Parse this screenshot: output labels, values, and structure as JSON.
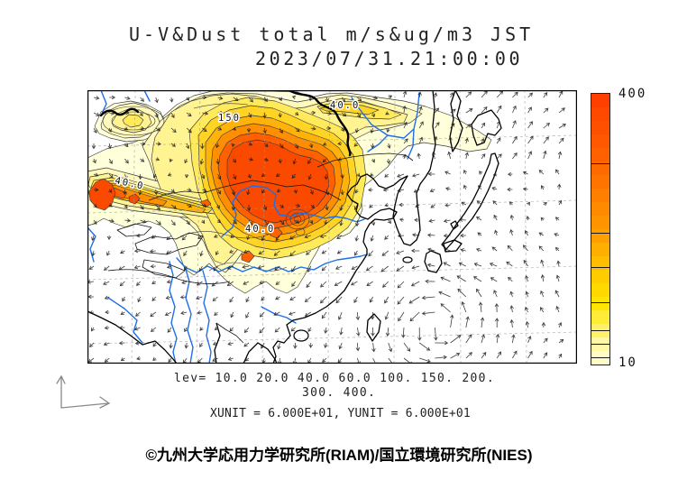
{
  "title": {
    "line1": "U-V&Dust total m/s&ug/m3 JST",
    "line2": "2023/07/31.21:00:00"
  },
  "legend": {
    "lev_line1": "lev= 10.0 20.0 40.0 60.0 100. 150. 200.",
    "lev_line2": "300. 400.",
    "units_line": "XUNIT = 6.000E+01, YUNIT = 6.000E+01"
  },
  "colorbar": {
    "max_label": "400",
    "min_label": "10",
    "min": 10,
    "max": 400,
    "levels": [
      10,
      20,
      40,
      60,
      100,
      150,
      200,
      300,
      400
    ],
    "gradient": [
      {
        "v": 10,
        "c": "#FFFFDC"
      },
      {
        "v": 20,
        "c": "#FFFCC4"
      },
      {
        "v": 40,
        "c": "#FFF9A6"
      },
      {
        "v": 60,
        "c": "#FFF266"
      },
      {
        "v": 100,
        "c": "#FFE400"
      },
      {
        "v": 150,
        "c": "#FFC400"
      },
      {
        "v": 200,
        "c": "#FF9C00"
      },
      {
        "v": 300,
        "c": "#FF6600"
      },
      {
        "v": 400,
        "c": "#FF3B00"
      }
    ]
  },
  "map": {
    "contour_labels": [
      "150",
      "40.0",
      "40.0",
      "40.0"
    ],
    "colors": {
      "river": "#1E6FE8",
      "coast": "#000000",
      "contour": "#3a3a3a",
      "arrow": "#1b1b1b",
      "graticule": "#999999"
    }
  },
  "footer": {
    "copyright": "©九州大学応用力学研究所(RIAM)/国立環境研究所(NIES)"
  },
  "chart_data": {
    "type": "heatmap",
    "subtype": "filled-contour map with wind vector field",
    "title": "U-V&Dust total m/s&ug/m3 JST",
    "timestamp": "2023/07/31.21:00:00",
    "quantity": "Dust total concentration (ug/m3, shaded) and U-V wind vectors (m/s)",
    "region": "East Asia (China, Mongolia, Korea, Japan, SE Asia)",
    "contour_levels": [
      10,
      20,
      40,
      60,
      100,
      150,
      200,
      300,
      400
    ],
    "level_colors": {
      "10": "#FFFFDA",
      "20": "#FFF9BC",
      "40": "#FFF392",
      "60": "#FFEA5C",
      "100": "#FFD425",
      "150": "#FFB30A",
      "200": "#FF8F00",
      "300": "#FF6000",
      "400": "#F94A00"
    },
    "colorbar_range": [
      10,
      400
    ],
    "xunit": "6.000E+01",
    "yunit": "6.000E+01",
    "annotations": [
      "primary dust maximum >400 ug/m3 over Mongolia / northern China",
      "secondary dust maximum >400 ug/m3 over the Tarim Basin (west)",
      "counterclockwise cyclonic vortex (typhoon) in the wind field southeast of Taiwan",
      "inline contour labels: 150, 40.0"
    ],
    "legend_position": "right colorbar, 10 (bottom) to 400 (top), linear"
  }
}
